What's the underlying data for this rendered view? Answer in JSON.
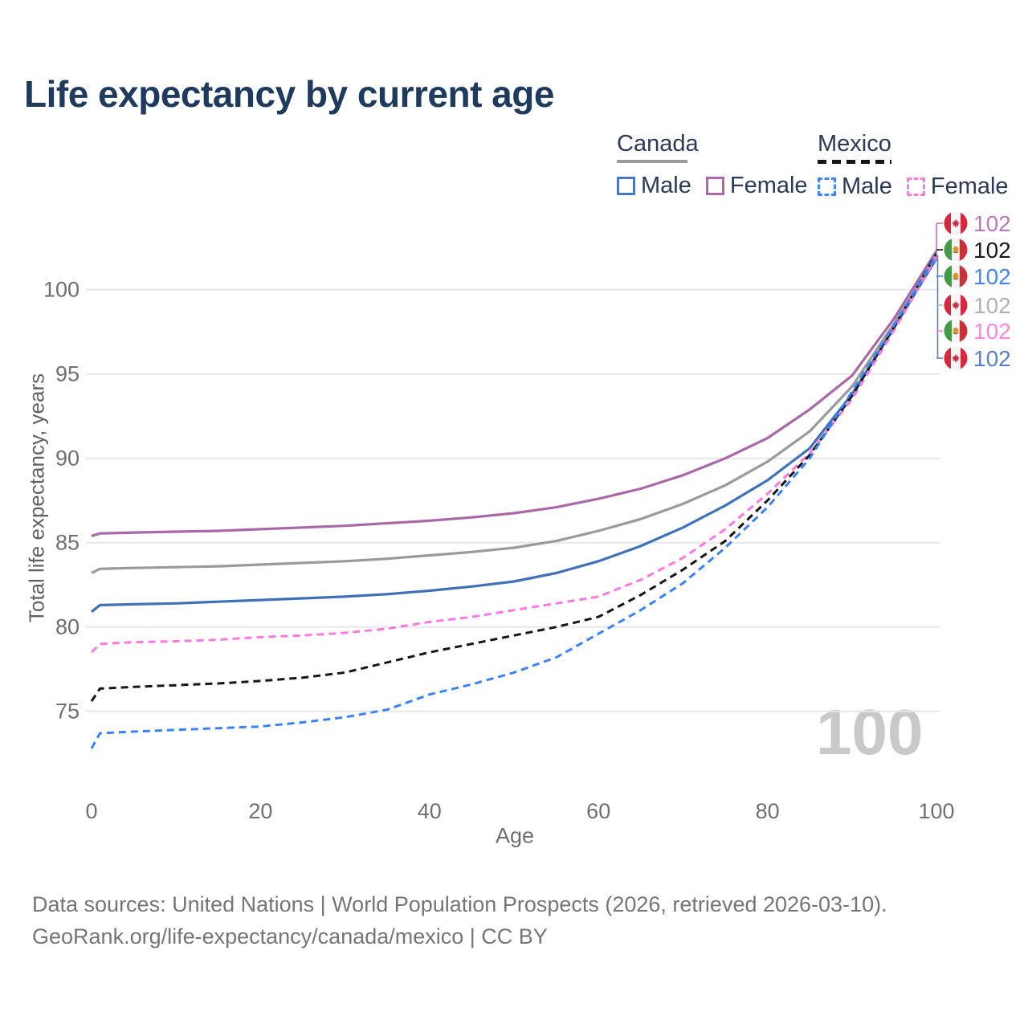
{
  "title": "Life expectancy by current age",
  "watermark": "100",
  "legend": {
    "canada": {
      "name": "Canada",
      "male": "Male",
      "female": "Female",
      "line_color": "#9a9a9a",
      "male_color": "#4a78c4",
      "female_color": "#b266ab"
    },
    "mexico": {
      "name": "Mexico",
      "male": "Male",
      "female": "Female",
      "line_color": "#161616",
      "male_color": "#4285f4",
      "female_color": "#ff7ce0"
    }
  },
  "chart_data": {
    "type": "line",
    "title": "Life expectancy by current age",
    "xlabel": "Age",
    "ylabel": "Total life expectancy, years",
    "x_ticks": [
      0,
      20,
      40,
      60,
      80,
      100
    ],
    "y_ticks": [
      75,
      80,
      85,
      90,
      95,
      100
    ],
    "xlim": [
      0,
      100
    ],
    "ylim": [
      70,
      104.5
    ],
    "grid": "horizontal",
    "legend_position": "top-right",
    "x": [
      0,
      1,
      5,
      10,
      15,
      20,
      25,
      30,
      35,
      40,
      45,
      50,
      55,
      60,
      65,
      70,
      75,
      80,
      85,
      90,
      95,
      100
    ],
    "series": [
      {
        "name": "Canada Male",
        "country": "canada",
        "color": "#4070b8",
        "dash": false,
        "values": [
          80.9,
          81.3,
          81.35,
          81.4,
          81.5,
          81.6,
          81.7,
          81.8,
          81.95,
          82.15,
          82.4,
          82.7,
          83.2,
          83.9,
          84.8,
          85.9,
          87.2,
          88.7,
          90.6,
          93.8,
          97.75,
          101.85
        ]
      },
      {
        "name": "Canada Both sexes",
        "country": "canada",
        "color": "#9a9a9a",
        "dash": false,
        "values": [
          83.2,
          83.45,
          83.5,
          83.55,
          83.6,
          83.7,
          83.8,
          83.9,
          84.05,
          84.25,
          84.45,
          84.7,
          85.1,
          85.7,
          86.4,
          87.3,
          88.4,
          89.8,
          91.6,
          94.25,
          98.0,
          102.0
        ]
      },
      {
        "name": "Canada Female",
        "country": "canada",
        "color": "#a969a7",
        "dash": false,
        "values": [
          85.4,
          85.55,
          85.6,
          85.65,
          85.7,
          85.8,
          85.9,
          86.0,
          86.15,
          86.3,
          86.5,
          86.75,
          87.1,
          87.6,
          88.2,
          89.0,
          90.0,
          91.2,
          92.9,
          94.9,
          98.3,
          102.3
        ]
      },
      {
        "name": "Mexico Female",
        "country": "mexico",
        "color": "#fb7ae0",
        "dash": true,
        "values": [
          78.5,
          79.0,
          79.1,
          79.15,
          79.25,
          79.4,
          79.5,
          79.65,
          79.9,
          80.3,
          80.6,
          81.0,
          81.4,
          81.8,
          82.8,
          84.1,
          85.8,
          87.9,
          90.3,
          93.5,
          97.6,
          101.95
        ]
      },
      {
        "name": "Mexico Both sexes",
        "country": "mexico",
        "color": "#161616",
        "dash": true,
        "values": [
          75.6,
          76.35,
          76.45,
          76.55,
          76.65,
          76.8,
          77.0,
          77.3,
          77.9,
          78.5,
          79.0,
          79.5,
          80.0,
          80.6,
          81.9,
          83.4,
          85.1,
          87.5,
          90.2,
          93.7,
          97.8,
          102.15
        ]
      },
      {
        "name": "Mexico Male",
        "country": "mexico",
        "color": "#3b82f6",
        "dash": true,
        "values": [
          72.8,
          73.7,
          73.8,
          73.9,
          74.0,
          74.1,
          74.35,
          74.65,
          75.1,
          76.0,
          76.6,
          77.3,
          78.2,
          79.6,
          81.0,
          82.6,
          84.7,
          87.1,
          90.0,
          93.95,
          97.9,
          102.05
        ]
      }
    ],
    "end_labels": [
      {
        "text": "102",
        "country": "canada",
        "series": "Canada Female",
        "color": "#b77ab5"
      },
      {
        "text": "102",
        "country": "mexico",
        "series": "Mexico Both sexes",
        "color": "#1a1a1a"
      },
      {
        "text": "102",
        "country": "mexico",
        "series": "Mexico Male",
        "color": "#4285f4"
      },
      {
        "text": "102",
        "country": "canada",
        "series": "Canada Both sexes",
        "color": "#b2b2b2"
      },
      {
        "text": "102",
        "country": "mexico",
        "series": "Mexico Female",
        "color": "#ff85e5"
      },
      {
        "text": "102",
        "country": "canada",
        "series": "Canada Male",
        "color": "#5b7fc7"
      }
    ]
  },
  "footer": {
    "line1": "Data sources: United Nations | World Population Prospects (2026, retrieved 2026-03-10).",
    "line2": "GeoRank.org/life-expectancy/canada/mexico | CC BY"
  }
}
